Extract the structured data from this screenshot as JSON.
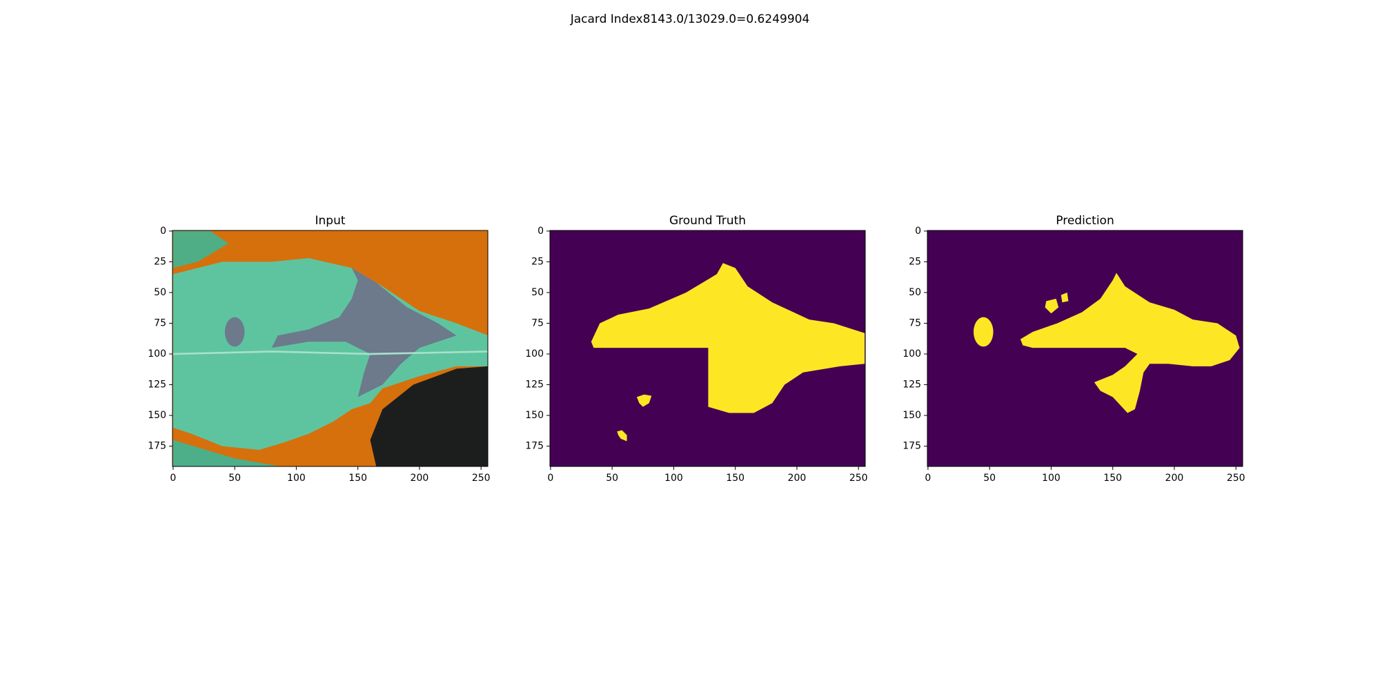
{
  "title": "Jacard Index8143.0/13029.0=0.6249904",
  "chart_data": [
    {
      "type": "image",
      "title": "Input",
      "xlim": [
        -0.5,
        255.5
      ],
      "ylim": [
        191.5,
        -0.5
      ],
      "xticks": [
        0,
        50,
        100,
        150,
        200,
        250
      ],
      "yticks": [
        0,
        25,
        50,
        75,
        100,
        125,
        150,
        175
      ]
    },
    {
      "type": "image",
      "title": "Ground Truth",
      "xlim": [
        -0.5,
        255.5
      ],
      "ylim": [
        191.5,
        -0.5
      ],
      "xticks": [
        0,
        50,
        100,
        150,
        200,
        250
      ],
      "yticks": [
        0,
        25,
        50,
        75,
        100,
        125,
        150,
        175
      ]
    },
    {
      "type": "image",
      "title": "Prediction",
      "xlim": [
        -0.5,
        255.5
      ],
      "ylim": [
        191.5,
        -0.5
      ],
      "xticks": [
        0,
        50,
        100,
        150,
        200,
        250
      ],
      "yticks": [
        0,
        25,
        50,
        75,
        100,
        125,
        150,
        175
      ]
    }
  ]
}
